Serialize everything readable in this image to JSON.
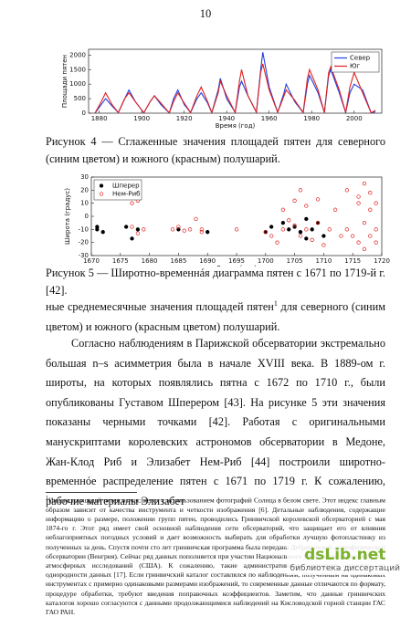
{
  "page_number": "10",
  "chart_data": [
    {
      "type": "line",
      "xlabel": "Время (год)",
      "ylabel": "Площади пятен",
      "x": [
        1878,
        1881,
        1883,
        1886,
        1889,
        1892,
        1894,
        1897,
        1901,
        1904,
        1906,
        1909,
        1913,
        1915,
        1917,
        1920,
        1923,
        1926,
        1928,
        1931,
        1933,
        1936,
        1937,
        1940,
        1944,
        1946,
        1947,
        1950,
        1954,
        1956,
        1957,
        1960,
        1964,
        1967,
        1968,
        1972,
        1976,
        1978,
        1979,
        1983,
        1986,
        1988,
        1989,
        1993,
        1996,
        1998,
        2000,
        2004,
        2008,
        2010
      ],
      "series": [
        {
          "name": "Север",
          "color": "#1f3fe0",
          "values": [
            0,
            300,
            500,
            250,
            20,
            500,
            800,
            400,
            10,
            400,
            600,
            300,
            10,
            500,
            800,
            300,
            20,
            500,
            700,
            350,
            20,
            800,
            1200,
            500,
            30,
            900,
            1100,
            600,
            30,
            1500,
            2100,
            900,
            30,
            700,
            1000,
            400,
            20,
            1000,
            1300,
            700,
            20,
            1300,
            1500,
            700,
            20,
            700,
            1000,
            800,
            10,
            50
          ]
        },
        {
          "name": "Юг",
          "color": "#e0201f",
          "values": [
            0,
            400,
            700,
            300,
            20,
            500,
            700,
            400,
            10,
            400,
            600,
            350,
            10,
            400,
            700,
            350,
            20,
            600,
            900,
            400,
            20,
            700,
            1100,
            600,
            20,
            1100,
            1500,
            600,
            30,
            1400,
            1700,
            800,
            30,
            600,
            800,
            450,
            20,
            1200,
            1500,
            800,
            20,
            1400,
            1600,
            800,
            20,
            900,
            1400,
            700,
            10,
            100
          ]
        }
      ],
      "xlim": [
        1875,
        2013
      ],
      "xticks": [
        1880,
        1900,
        1920,
        1940,
        1960,
        1980,
        2000
      ],
      "ylim": [
        0,
        2200
      ],
      "yticks": [
        0,
        500,
        1000,
        1500,
        2000
      ],
      "legend": "upper right"
    },
    {
      "type": "scatter",
      "xlabel": "Время (год)",
      "ylabel": "Широта (градус)",
      "series": [
        {
          "name": "Шперер",
          "color": "#000000",
          "marker": "filled",
          "x": [
            1671,
            1671,
            1672,
            1676,
            1677,
            1678,
            1685,
            1690,
            1700,
            1701,
            1703,
            1704,
            1705,
            1706,
            1707,
            1707,
            1708,
            1709,
            1710
          ],
          "values": [
            -10,
            -8,
            -12,
            -8,
            -17,
            -10,
            -10,
            -12,
            -12,
            -8,
            -5,
            -10,
            -8,
            -12,
            -2,
            -17,
            -10,
            -5,
            -15
          ]
        },
        {
          "name": "Нем-Риб",
          "color": "#e0201f",
          "marker": "open",
          "x": [
            1677,
            1677,
            1677,
            1678,
            1678,
            1679,
            1684,
            1685,
            1686,
            1687,
            1688,
            1689,
            1689,
            1695,
            1700,
            1701,
            1702,
            1703,
            1703,
            1704,
            1705,
            1705,
            1706,
            1706,
            1707,
            1707,
            1708,
            1709,
            1709,
            1710,
            1711,
            1712,
            1713,
            1714,
            1714,
            1715,
            1716,
            1716,
            1716,
            1717,
            1717,
            1717,
            1718,
            1718,
            1718,
            1719,
            1719,
            1719
          ],
          "values": [
            15,
            10,
            -8,
            12,
            -13,
            -10,
            -10,
            -8,
            -11,
            -10,
            -2,
            -10,
            -12,
            -10,
            -12,
            -15,
            -20,
            -10,
            5,
            -3,
            12,
            -7,
            20,
            -15,
            8,
            -10,
            -18,
            13,
            -5,
            -22,
            -10,
            5,
            -15,
            20,
            -10,
            -15,
            15,
            -20,
            10,
            25,
            -5,
            -25,
            18,
            -15,
            5,
            -10,
            10,
            -20
          ]
        }
      ],
      "xlim": [
        1670,
        1720
      ],
      "xticks": [
        1670,
        1675,
        1680,
        1685,
        1690,
        1695,
        1700,
        1705,
        1710,
        1715,
        1720
      ],
      "ylim": [
        -30,
        30
      ],
      "yticks": [
        -30,
        -20,
        -10,
        0,
        10,
        20,
        30
      ],
      "legend": "upper left"
    }
  ],
  "captions": [
    "Рисунок 4 — Сглаженные значения площадей пятен для северного (синим цветом) и южного (красным) полушарий.",
    "Рисунок 5 — Широтно-временнáя диаграмма пятен с 1671 по 1719-й г. [42]."
  ],
  "paragraphs": [
    {
      "before": "ные среднемесячные значения площадей пятен",
      "note": "1",
      "after": " для северного (синим цветом) и южного (красным цветом) полушарий."
    },
    {
      "before": "Согласно наблюдениям в Парижской обсерватории экстремально большая n–s асимметрия была в начале XVIII века. В 1889-ом г. широты, на которых появлялись пятна с 1672 по 1710 г., были опубликованы Густавом Шперером [43]. На рисунке 5 эти значения показаны черными точками [42]. Работая с оригинальными манускриптами королевских астрономов обсерватории в Медоне, Жан-Клод Риб и Элизабет Нем-Риб [44] построили широтно-временнóе распределение пятен с 1671 по 1719 г. К сожалению, рабочие материалы Элизабет",
      "note": null,
      "after": null
    }
  ],
  "footnote": {
    "mark": "1",
    "text": "Индекс площадей пятен вычисляется с использованием фотографий Солнца в белом свете. Этот индекс главным образом зависит от качества инструмента и четкости изображения [6]. Детальные наблюдения, содержащие информацию о размере, положении групп пятен, проводились Гринвичской королевской обсерваторией с мая 1874-го г. Этот ряд имеет свой основной наблюдения сети обсерваторий, что защищает его от влияния неблагоприятных погодных условий и дает возможность выбирать для обработки лучшую фотопластинку из полученных за день. Спустя почти сто лет гринвичская программа была передана Дебреценской гелиофизической обсерватории (Венгрия). Сейчас ряд данных пополняется при участии Национального управления океанических и атмосферных исследований (США). К сожалению, такие административные изменения сказались на однородности данных [17]. Если гринвичский каталог составлялся по наблюдениям, полученным на одинаковых инструментах с примерно одинаковыми размерами изображений, то современные данные отличаются по формату, процедуре обработки, требуют введения поправочных коэффициентов. Заметим, что данные гринвичских каталогов хорошо согласуются с данными продолжающимися наблюдений на Кисловодской горной станции ГАС ГАО РАН."
  },
  "watermark": {
    "brand": "dsLib.net",
    "subtitle": "библиотека диссертаций"
  }
}
